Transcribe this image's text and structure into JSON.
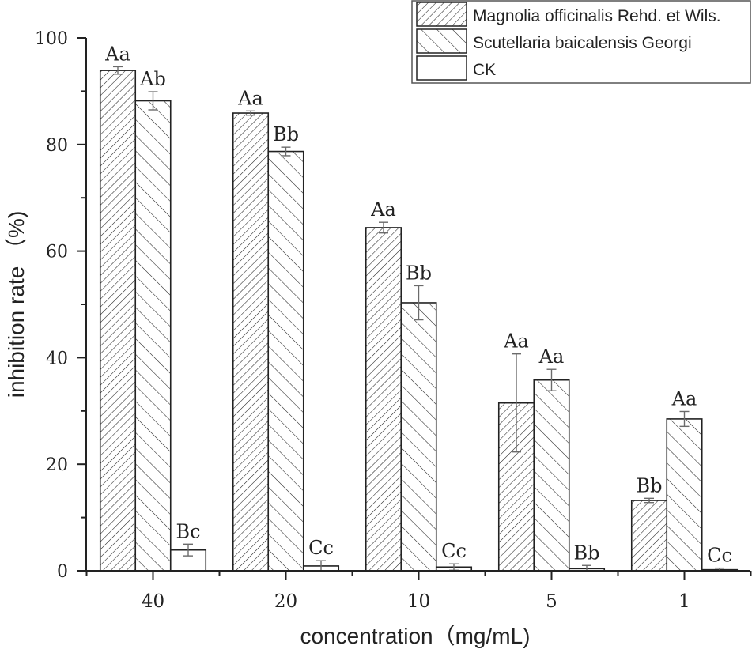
{
  "chart_data": {
    "type": "bar",
    "xlabel": "concentration（mg/mL)",
    "ylabel": "inhibition rate （%)",
    "categories": [
      "40",
      "20",
      "10",
      "5",
      "1"
    ],
    "ylim": [
      0,
      100
    ],
    "yticks": [
      "0",
      "20",
      "40",
      "60",
      "80",
      "100"
    ],
    "grid": false,
    "legend_position": "top-right",
    "series": [
      {
        "name": "Magnolia officinalis Rehd. et Wils.",
        "pattern": "forward-diagonal-dense",
        "values": [
          93.9,
          85.9,
          64.4,
          31.5,
          13.2
        ],
        "errors": [
          0.7,
          0.4,
          1.0,
          9.2,
          0.4
        ],
        "letters": [
          "Aa",
          "Aa",
          "Aa",
          "Aa",
          "Bb"
        ]
      },
      {
        "name": "Scutellaria baicalensis Georgi",
        "pattern": "back-diagonal-sparse",
        "values": [
          88.2,
          78.7,
          50.3,
          35.8,
          28.5
        ],
        "errors": [
          1.7,
          0.8,
          3.2,
          2.0,
          1.4
        ],
        "letters": [
          "Ab",
          "Bb",
          "Bb",
          "Aa",
          "Aa"
        ]
      },
      {
        "name": "CK",
        "pattern": "none",
        "values": [
          3.9,
          0.9,
          0.7,
          0.4,
          0.2
        ],
        "errors": [
          1.1,
          1.0,
          0.6,
          0.6,
          0.3
        ],
        "letters": [
          "Bc",
          "Cc",
          "Cc",
          "Bb",
          "Cc"
        ]
      }
    ],
    "colors": {
      "outline": "#222222",
      "error_bar": "#6b6b6b",
      "background": "#ffffff"
    }
  }
}
